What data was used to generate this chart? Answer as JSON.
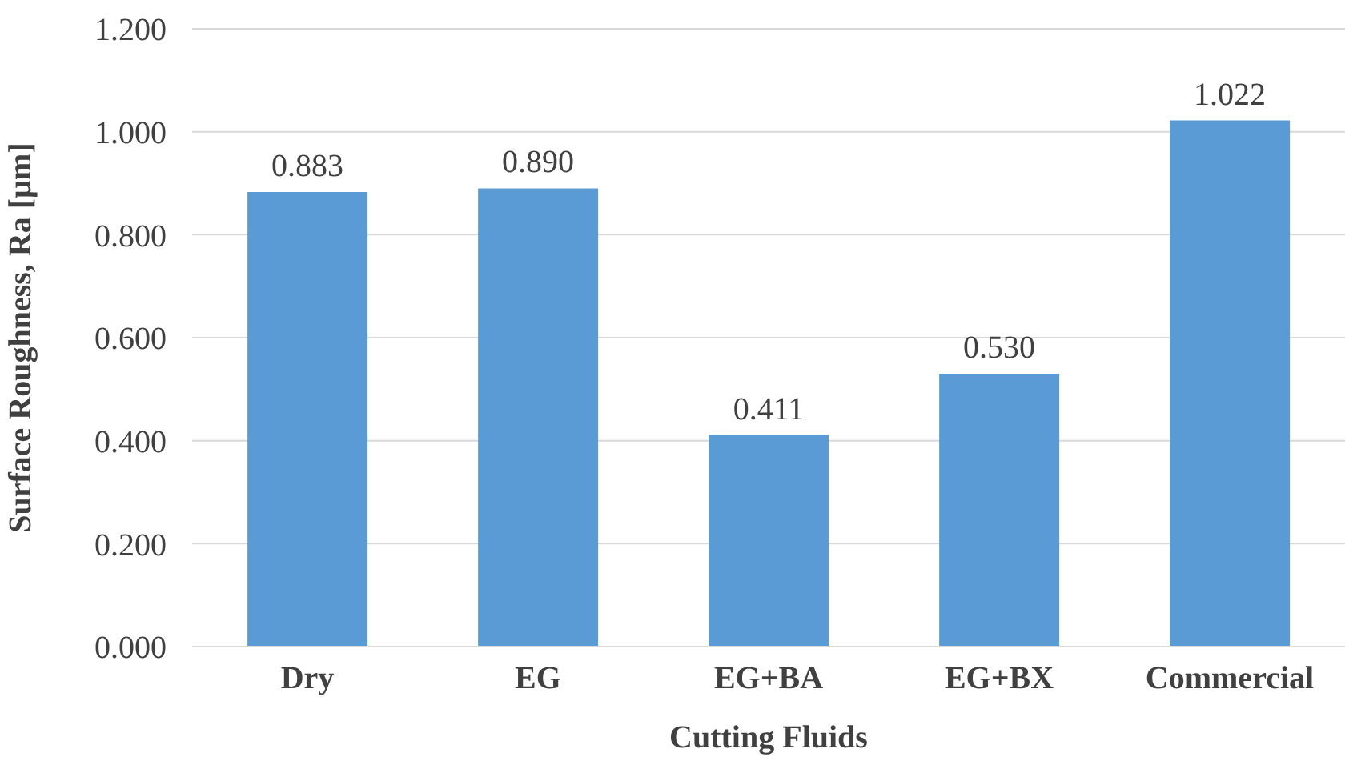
{
  "chart_data": {
    "type": "bar",
    "xlabel": "Cutting Fluids",
    "ylabel": "Surface Roughness, Ra [µm]",
    "categories": [
      "Dry",
      "EG",
      "EG+BA",
      "EG+BX",
      "Commercial"
    ],
    "values": [
      0.883,
      0.89,
      0.411,
      0.53,
      1.022
    ],
    "value_labels": [
      "0.883",
      "0.890",
      "0.411",
      "0.530",
      "1.022"
    ],
    "color": "#5b9bd5",
    "ylim": [
      0,
      1.2
    ],
    "yticks": [
      {
        "value": 0,
        "label": "0.000"
      },
      {
        "value": 0.2,
        "label": "0.200"
      },
      {
        "value": 0.4,
        "label": "0.400"
      },
      {
        "value": 0.6,
        "label": "0.600"
      },
      {
        "value": 0.8,
        "label": "0.800"
      },
      {
        "value": 1.0,
        "label": "1.000"
      },
      {
        "value": 1.2,
        "label": "1.200"
      }
    ],
    "grid": "y"
  }
}
